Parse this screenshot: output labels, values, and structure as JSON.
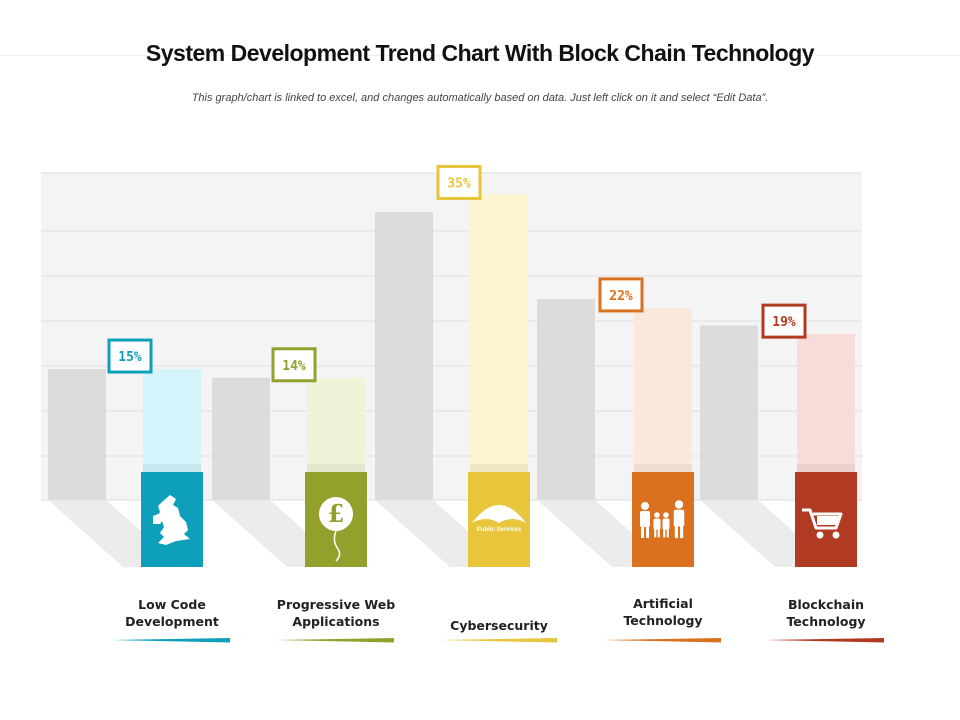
{
  "title": "System Development Trend Chart With Block Chain Technology",
  "subtitle": "This graph/chart is linked to excel, and changes automatically based on data. Just left click on it and select “Edit Data”.",
  "colors": {
    "teal": "#0e9fba",
    "olive": "#93a02c",
    "yellow": "#e8c53a",
    "orange": "#d9711e",
    "red": "#b13a23",
    "gray_bar": "#dcdcdc",
    "plot_bg": "#f4f4f4"
  },
  "icons": [
    "uk-map-icon",
    "pound-balloon-icon",
    "umbrella-icon",
    "family-icon",
    "shopping-cart-icon"
  ],
  "icon_texts": [
    "",
    "",
    "Public Services",
    "",
    ""
  ],
  "chart_data": {
    "type": "bar",
    "categories": [
      "Low Code\nDevelopment",
      "Progressive Web\nApplications",
      "Cybersecurity",
      "Artificial\nTechnology",
      "Blockchain\nTechnology"
    ],
    "values": [
      15,
      14,
      35,
      22,
      19
    ],
    "value_labels": [
      "15%",
      "14%",
      "35%",
      "22%",
      "19%"
    ],
    "grey_bars": [
      15,
      14,
      33,
      23,
      20
    ],
    "ylim": [
      0,
      37
    ],
    "grid": true
  }
}
